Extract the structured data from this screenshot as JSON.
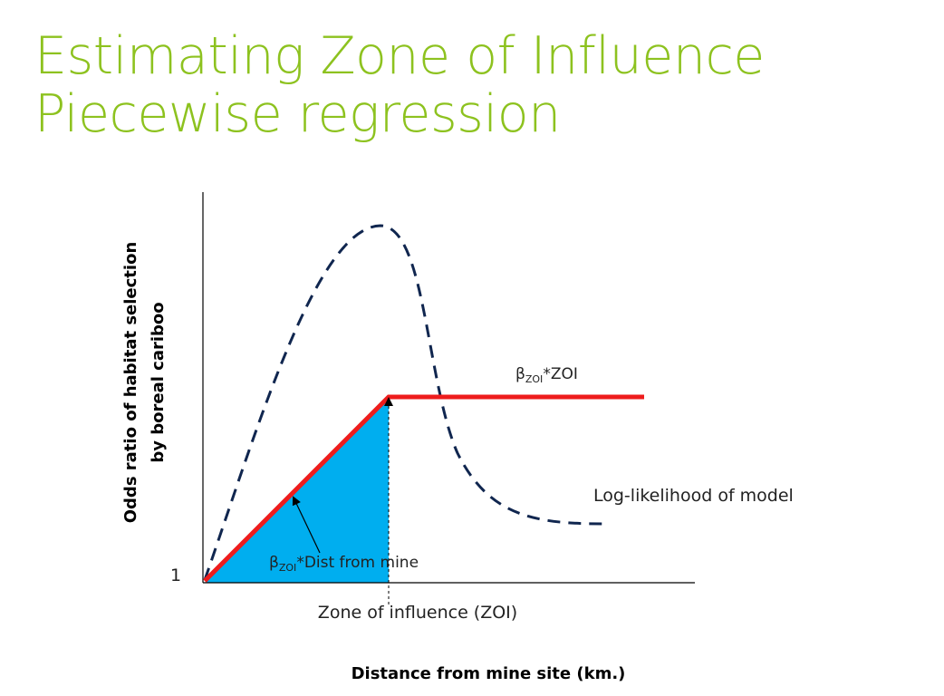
{
  "title": {
    "line1": "Estimating Zone of Influence",
    "line2": "Piecewise regression"
  },
  "diagram": {
    "y_axis_label": [
      "Odds ratio of habitat selection",
      "by boreal cariboo"
    ],
    "x_axis_label": "Distance from mine site (km.)",
    "y_tick": "1",
    "zoi_label": "Zone of influence (ZOI)",
    "slope_label": {
      "beta": "β",
      "sub": "ZOI",
      "rest": "*Dist from mine"
    },
    "plateau_label": {
      "beta": "β",
      "sub": "ZOI",
      "rest": "*ZOI"
    },
    "curve_label": "Log-likelihood of model",
    "colors": {
      "title": "#8DC21F",
      "piecewise": "#EE1C1C",
      "fill": "#00AEEF",
      "curve": "#10264F"
    }
  }
}
